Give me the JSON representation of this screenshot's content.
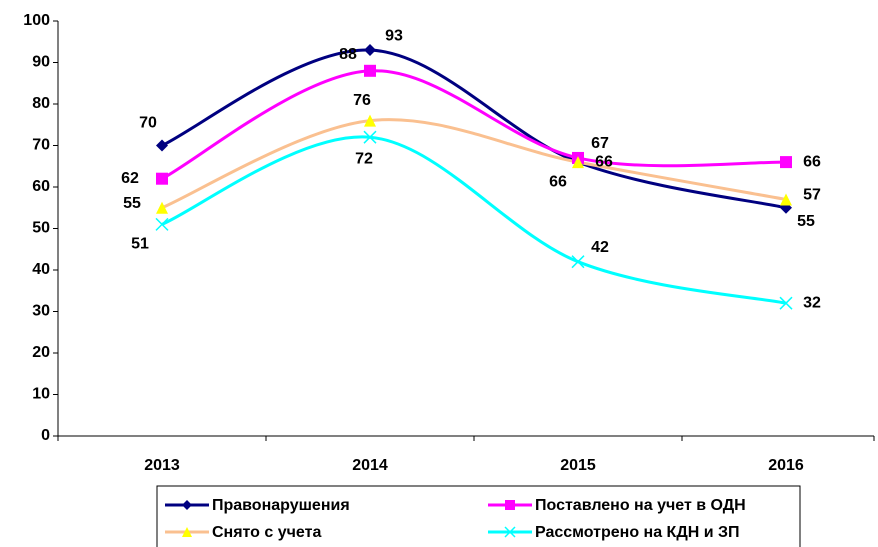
{
  "chart_data": {
    "type": "line",
    "categories": [
      "2013",
      "2014",
      "2015",
      "2016"
    ],
    "series": [
      {
        "name": "Правонарушения",
        "color": "#000080",
        "marker": "diamond",
        "marker_color": "#000080",
        "values": [
          70,
          93,
          66,
          55
        ]
      },
      {
        "name": "Поставлено на учет в ОДН",
        "color": "#ff00ff",
        "marker": "square",
        "marker_color": "#ff00ff",
        "values": [
          62,
          88,
          67,
          66
        ]
      },
      {
        "name": "Снято с учета",
        "color": "#fac090",
        "marker": "triangle",
        "marker_color": "#ffff00",
        "values": [
          55,
          76,
          66,
          57
        ]
      },
      {
        "name": "Рассмотрено на КДН и ЗП",
        "color": "#00ffff",
        "marker": "x",
        "marker_color": "#00ffff",
        "values": [
          51,
          72,
          42,
          32
        ]
      }
    ],
    "ylim": [
      0,
      100
    ],
    "yticks": [
      0,
      10,
      20,
      30,
      40,
      50,
      60,
      70,
      80,
      90,
      100
    ],
    "grid": false,
    "smooth": true,
    "legend": "bottom"
  }
}
